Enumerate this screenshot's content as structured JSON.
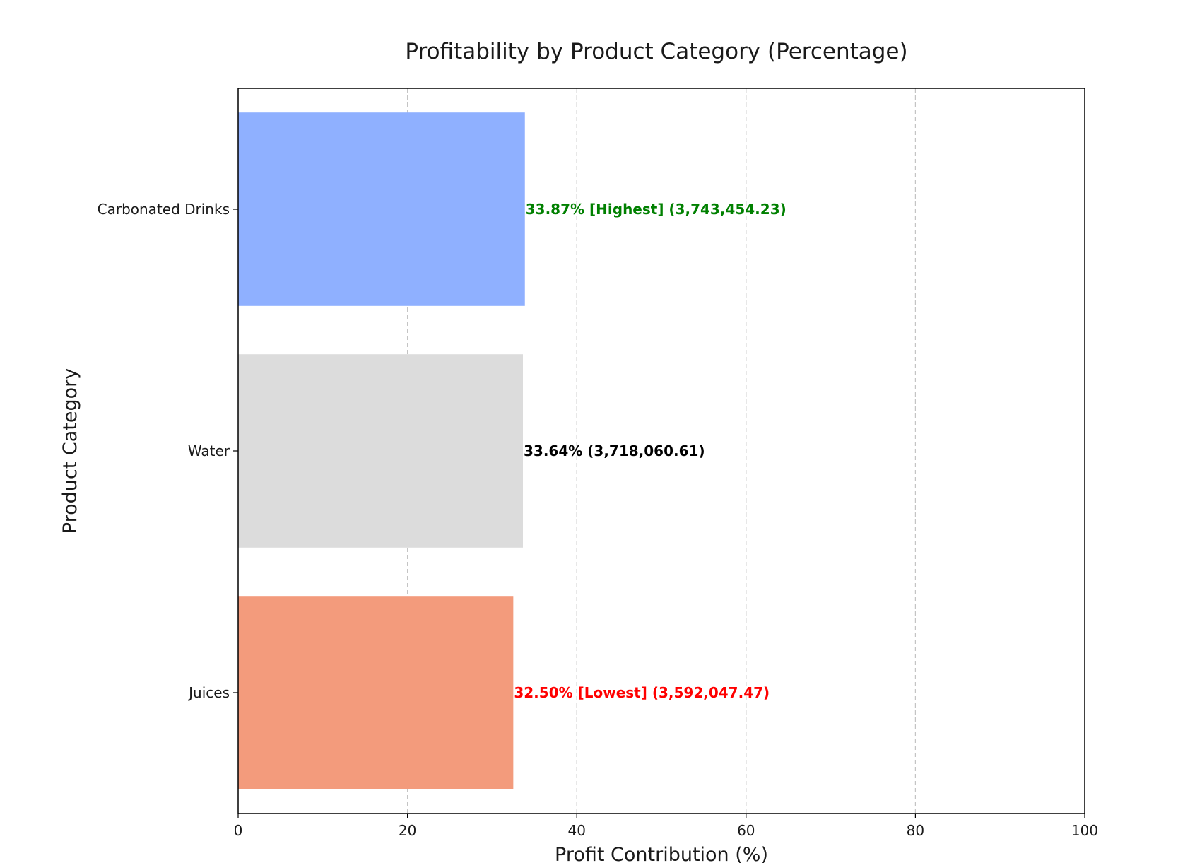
{
  "chart_data": {
    "type": "bar",
    "orientation": "horizontal",
    "title": "Profitability by Product Category (Percentage)",
    "xlabel": "Profit Contribution (%)",
    "ylabel": "Product Category",
    "xlim": [
      0,
      100
    ],
    "xticks": [
      "0",
      "20",
      "40",
      "60",
      "80",
      "100"
    ],
    "grid": "x-dashed",
    "categories": [
      "Carbonated Drinks",
      "Water",
      "Juices"
    ],
    "values": [
      33.87,
      33.64,
      32.5
    ],
    "bar_colors": [
      "#8fb0ff",
      "#dcdcdc",
      "#f39b7c"
    ],
    "data_labels": [
      "33.87% [Highest] (3,743,454.23)",
      "33.64% (3,718,060.61)",
      "32.50% [Lowest] (3,592,047.47)"
    ],
    "label_colors": [
      "#008000",
      "#000000",
      "#ff0000"
    ]
  }
}
